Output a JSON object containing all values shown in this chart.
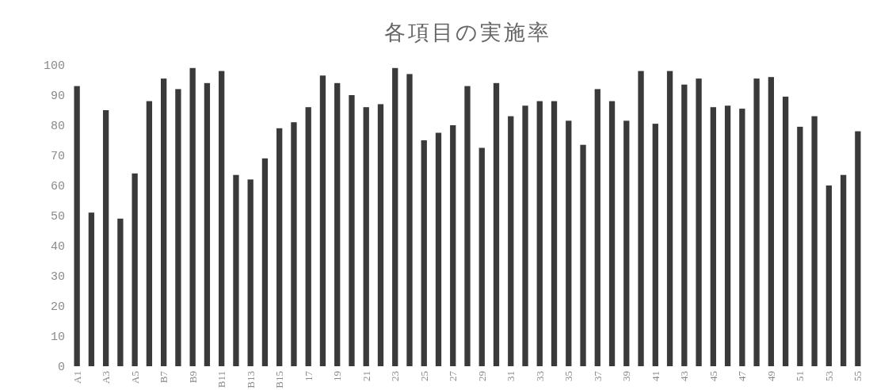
{
  "chart_data": {
    "type": "bar",
    "title": "各項目の実施率",
    "categories": [
      "A1",
      null,
      "A3",
      null,
      "A5",
      null,
      "B7",
      null,
      "B9",
      null,
      "B11",
      null,
      "B13",
      null,
      "B15",
      null,
      "17",
      null,
      "19",
      null,
      "21",
      null,
      "23",
      null,
      "25",
      null,
      "27",
      null,
      "29",
      null,
      "31",
      null,
      "33",
      null,
      "35",
      null,
      "37",
      null,
      "39",
      null,
      "41",
      null,
      "43",
      null,
      "45",
      null,
      "47",
      null,
      "49",
      null,
      "51",
      null,
      "53",
      null,
      "55"
    ],
    "values": [
      93,
      51,
      85,
      49,
      64,
      88,
      95.5,
      92,
      99,
      94,
      98,
      63.5,
      62,
      69,
      79,
      81,
      86,
      96.5,
      94,
      90,
      86,
      87,
      99,
      97,
      75,
      77.5,
      80,
      93,
      72.5,
      94,
      83,
      86.5,
      88,
      88,
      81.5,
      73.5,
      92,
      88,
      81.5,
      98,
      80.5,
      98,
      93.5,
      95.5,
      86,
      86.5,
      85.5,
      95.5,
      96,
      89.5,
      79.5,
      83,
      60,
      63.5,
      78
    ],
    "color": "#3a3a3a",
    "ylim": [
      0,
      100
    ],
    "yticks": [
      0,
      10,
      20,
      30,
      40,
      50,
      60,
      70,
      80,
      90,
      100
    ],
    "grid": false
  }
}
